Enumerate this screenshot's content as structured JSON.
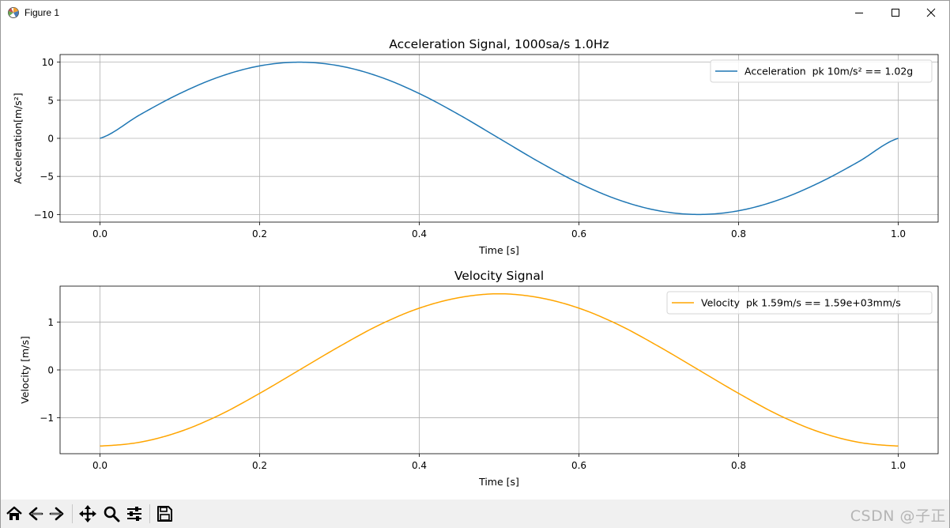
{
  "window": {
    "title": "Figure 1",
    "minimize_icon": "minimize-icon",
    "maximize_icon": "maximize-icon",
    "close_icon": "close-icon"
  },
  "toolbar": {
    "tools": [
      {
        "name": "home-button",
        "icon": "home-icon"
      },
      {
        "name": "back-button",
        "icon": "back-arrow-icon"
      },
      {
        "name": "forward-button",
        "icon": "forward-arrow-icon"
      },
      {
        "name": "pan-button",
        "icon": "move-icon"
      },
      {
        "name": "zoom-button",
        "icon": "magnifier-icon"
      },
      {
        "name": "configure-subplots-button",
        "icon": "sliders-icon"
      },
      {
        "name": "save-button",
        "icon": "save-icon"
      }
    ]
  },
  "watermark": "CSDN @子正",
  "chart_data": [
    {
      "type": "line",
      "title": "Acceleration Signal, 1000sa/s 1.0Hz",
      "xlabel": "Time [s]",
      "ylabel": "Acceleration[m/s²]",
      "xlim": [
        -0.05,
        1.05
      ],
      "ylim": [
        -11,
        11
      ],
      "xticks": [
        0.0,
        0.2,
        0.4,
        0.6,
        0.8,
        1.0
      ],
      "xtick_labels": [
        "0.0",
        "0.2",
        "0.4",
        "0.6",
        "0.8",
        "1.0"
      ],
      "yticks": [
        10,
        5,
        0,
        -5,
        -10
      ],
      "ytick_labels": [
        "10",
        "5",
        "0",
        "−5",
        "−10"
      ],
      "grid": true,
      "legend_position": "top-right",
      "series": [
        {
          "name": "Acceleration  pk 10m/s² == 1.02g",
          "color": "#1f77b4",
          "x": [
            0.0,
            0.05,
            0.1,
            0.15,
            0.2,
            0.25,
            0.3,
            0.35,
            0.4,
            0.45,
            0.5,
            0.55,
            0.6,
            0.65,
            0.7,
            0.75,
            0.8,
            0.85,
            0.9,
            0.95,
            1.0
          ],
          "y": [
            0.0,
            3.09,
            5.88,
            8.09,
            9.51,
            10.0,
            9.51,
            8.09,
            5.88,
            3.09,
            0.0,
            -3.09,
            -5.88,
            -8.09,
            -9.51,
            -10.0,
            -9.51,
            -8.09,
            -5.88,
            -3.09,
            0.0
          ]
        }
      ]
    },
    {
      "type": "line",
      "title": "Velocity Signal",
      "xlabel": "Time [s]",
      "ylabel": "Velocity [m/s]",
      "xlim": [
        -0.05,
        1.05
      ],
      "ylim": [
        -1.75,
        1.75
      ],
      "xticks": [
        0.0,
        0.2,
        0.4,
        0.6,
        0.8,
        1.0
      ],
      "xtick_labels": [
        "0.0",
        "0.2",
        "0.4",
        "0.6",
        "0.8",
        "1.0"
      ],
      "yticks": [
        1,
        0,
        -1
      ],
      "ytick_labels": [
        "1",
        "0",
        "−1"
      ],
      "grid": true,
      "legend_position": "top-right",
      "series": [
        {
          "name": "Velocity  pk 1.59m/s == 1.59e+03mm/s",
          "color": "#ffa500",
          "x": [
            0.0,
            0.05,
            0.1,
            0.15,
            0.2,
            0.25,
            0.3,
            0.35,
            0.4,
            0.45,
            0.5,
            0.55,
            0.6,
            0.65,
            0.7,
            0.75,
            0.8,
            0.85,
            0.9,
            0.95,
            1.0
          ],
          "y": [
            -1.59,
            -1.51,
            -1.29,
            -0.94,
            -0.49,
            0.0,
            0.49,
            0.94,
            1.29,
            1.51,
            1.59,
            1.51,
            1.29,
            0.94,
            0.49,
            0.0,
            -0.49,
            -0.94,
            -1.29,
            -1.51,
            -1.59
          ]
        }
      ]
    }
  ]
}
